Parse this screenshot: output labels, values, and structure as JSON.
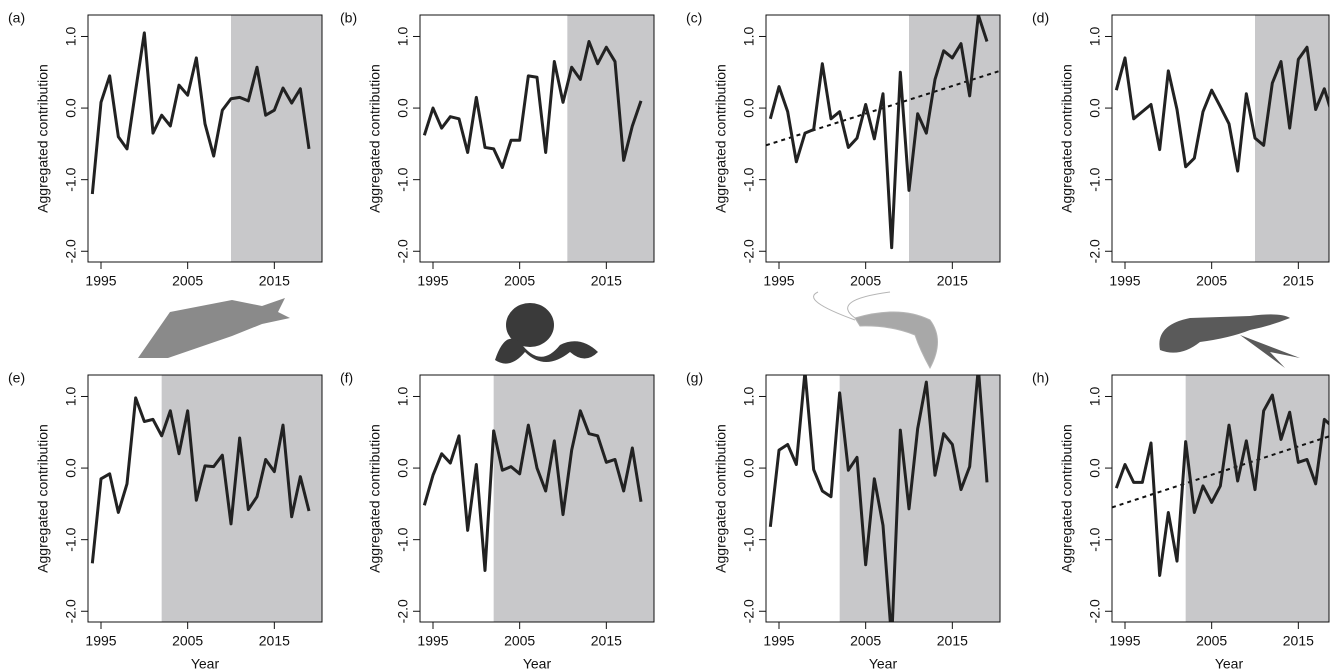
{
  "chart_data": [
    {
      "type": "line",
      "panel_label": "(a)",
      "ylabel": "Aggregated contribution",
      "color": "#222222",
      "shade_color": "#c8c8ca",
      "shaded_from": 2010,
      "x": [
        1994,
        1995,
        1996,
        1997,
        1998,
        1999,
        2000,
        2001,
        2002,
        2003,
        2004,
        2005,
        2006,
        2007,
        2008,
        2009,
        2010,
        2011,
        2012,
        2013,
        2014,
        2015,
        2016,
        2017,
        2018,
        2019
      ],
      "values": [
        -1.2,
        0.08,
        0.45,
        -0.4,
        -0.57,
        0.25,
        1.05,
        -0.35,
        -0.1,
        -0.25,
        0.32,
        0.18,
        0.7,
        -0.22,
        -0.67,
        -0.03,
        0.13,
        0.15,
        0.1,
        0.57,
        -0.1,
        -0.03,
        0.28,
        0.07,
        0.27,
        -0.57
      ],
      "xlim": [
        1993.5,
        2020.5
      ],
      "xticks": [
        1995,
        2005,
        2015
      ],
      "ylim": [
        -2.15,
        1.3
      ],
      "yticks": [
        {
          "value": -2,
          "label": "-2.0"
        },
        {
          "value": -1,
          "label": "-1.0"
        },
        {
          "value": 0,
          "label": "0.0"
        },
        {
          "value": 1,
          "label": "1.0"
        }
      ]
    },
    {
      "type": "line",
      "panel_label": "(b)",
      "ylabel": "Aggregated contribution",
      "color": "#222222",
      "shade_color": "#c8c8ca",
      "shaded_from": 2010.5,
      "x": [
        1994,
        1995,
        1996,
        1997,
        1998,
        1999,
        2000,
        2001,
        2002,
        2003,
        2004,
        2005,
        2006,
        2007,
        2008,
        2009,
        2010,
        2011,
        2012,
        2013,
        2014,
        2015,
        2016,
        2017,
        2018,
        2019
      ],
      "values": [
        -0.38,
        0.0,
        -0.28,
        -0.12,
        -0.15,
        -0.62,
        0.15,
        -0.55,
        -0.57,
        -0.83,
        -0.45,
        -0.45,
        0.45,
        0.43,
        -0.62,
        0.65,
        0.08,
        0.57,
        0.4,
        0.93,
        0.62,
        0.85,
        0.65,
        -0.73,
        -0.25,
        0.1
      ],
      "xlim": [
        1993.5,
        2020.5
      ],
      "xticks": [
        1995,
        2005,
        2015
      ],
      "ylim": [
        -2.15,
        1.3
      ],
      "yticks": [
        {
          "value": -2,
          "label": "-2.0"
        },
        {
          "value": -1,
          "label": "-1.0"
        },
        {
          "value": 0,
          "label": "0.0"
        },
        {
          "value": 1,
          "label": "1.0"
        }
      ]
    },
    {
      "type": "line",
      "panel_label": "(c)",
      "ylabel": "Aggregated contribution",
      "color": "#222222",
      "shade_color": "#c8c8ca",
      "shaded_from": 2010,
      "x": [
        1994,
        1995,
        1996,
        1997,
        1998,
        1999,
        2000,
        2001,
        2002,
        2003,
        2004,
        2005,
        2006,
        2007,
        2008,
        2009,
        2010,
        2011,
        2012,
        2013,
        2014,
        2015,
        2016,
        2017,
        2018,
        2019
      ],
      "values": [
        -0.15,
        0.3,
        -0.05,
        -0.75,
        -0.35,
        -0.3,
        0.62,
        -0.15,
        -0.05,
        -0.55,
        -0.42,
        0.05,
        -0.43,
        0.2,
        -1.95,
        0.5,
        -1.15,
        -0.08,
        -0.35,
        0.4,
        0.8,
        0.7,
        0.9,
        0.17,
        1.3,
        0.93
      ],
      "trend": {
        "x": [
          1993.5,
          2020.5
        ],
        "values": [
          -0.52,
          0.52
        ]
      },
      "xlim": [
        1993.5,
        2020.5
      ],
      "xticks": [
        1995,
        2005,
        2015
      ],
      "ylim": [
        -2.15,
        1.3
      ],
      "yticks": [
        {
          "value": -2,
          "label": "-2.0"
        },
        {
          "value": -1,
          "label": "-1.0"
        },
        {
          "value": 0,
          "label": "0.0"
        },
        {
          "value": 1,
          "label": "1.0"
        }
      ]
    },
    {
      "type": "line",
      "panel_label": "(d)",
      "ylabel": "Aggregated contribution",
      "color": "#222222",
      "shade_color": "#c8c8ca",
      "shaded_from": 2010,
      "x": [
        1994,
        1995,
        1996,
        1997,
        1998,
        1999,
        2000,
        2001,
        2002,
        2003,
        2004,
        2005,
        2006,
        2007,
        2008,
        2009,
        2010,
        2011,
        2012,
        2013,
        2014,
        2015,
        2016,
        2017,
        2018,
        2019
      ],
      "values": [
        0.25,
        0.7,
        -0.15,
        -0.05,
        0.05,
        -0.58,
        0.52,
        -0.02,
        -0.82,
        -0.7,
        -0.05,
        0.25,
        0.02,
        -0.22,
        -0.88,
        0.2,
        -0.42,
        -0.52,
        0.35,
        0.65,
        -0.28,
        0.68,
        0.85,
        -0.02,
        0.27,
        -0.13
      ],
      "xlim": [
        1993.5,
        2020.5
      ],
      "xticks": [
        1995,
        2005,
        2015
      ],
      "ylim": [
        -2.15,
        1.3
      ],
      "yticks": [
        {
          "value": -2,
          "label": "-2.0"
        },
        {
          "value": -1,
          "label": "-1.0"
        },
        {
          "value": 0,
          "label": "0.0"
        },
        {
          "value": 1,
          "label": "1.0"
        }
      ]
    },
    {
      "type": "line",
      "panel_label": "(e)",
      "ylabel": "Aggregated contribution",
      "xlabel": "Year",
      "color": "#222222",
      "shade_color": "#c8c8ca",
      "shaded_from": 2002,
      "x": [
        1994,
        1995,
        1996,
        1997,
        1998,
        1999,
        2000,
        2001,
        2002,
        2003,
        2004,
        2005,
        2006,
        2007,
        2008,
        2009,
        2010,
        2011,
        2012,
        2013,
        2014,
        2015,
        2016,
        2017,
        2018,
        2019
      ],
      "values": [
        -1.33,
        -0.15,
        -0.08,
        -0.62,
        -0.22,
        0.98,
        0.65,
        0.68,
        0.45,
        0.8,
        0.2,
        0.8,
        -0.45,
        0.03,
        0.02,
        0.18,
        -0.78,
        0.42,
        -0.58,
        -0.4,
        0.12,
        -0.05,
        0.6,
        -0.68,
        -0.12,
        -0.6
      ],
      "xlim": [
        1993.5,
        2020.5
      ],
      "xticks": [
        1995,
        2005,
        2015
      ],
      "ylim": [
        -2.15,
        1.3
      ],
      "yticks": [
        {
          "value": -2,
          "label": "-2.0"
        },
        {
          "value": -1,
          "label": "-1.0"
        },
        {
          "value": 0,
          "label": "0.0"
        },
        {
          "value": 1,
          "label": "1.0"
        }
      ]
    },
    {
      "type": "line",
      "panel_label": "(f)",
      "ylabel": "Aggregated contribution",
      "xlabel": "Year",
      "color": "#222222",
      "shade_color": "#c8c8ca",
      "shaded_from": 2002,
      "x": [
        1994,
        1995,
        1996,
        1997,
        1998,
        1999,
        2000,
        2001,
        2002,
        2003,
        2004,
        2005,
        2006,
        2007,
        2008,
        2009,
        2010,
        2011,
        2012,
        2013,
        2014,
        2015,
        2016,
        2017,
        2018,
        2019
      ],
      "values": [
        -0.52,
        -0.1,
        0.2,
        0.07,
        0.45,
        -0.87,
        0.05,
        -1.43,
        0.52,
        -0.03,
        0.02,
        -0.08,
        0.6,
        0.0,
        -0.32,
        0.38,
        -0.65,
        0.25,
        0.8,
        0.48,
        0.45,
        0.08,
        0.12,
        -0.32,
        0.28,
        -0.47
      ],
      "xlim": [
        1993.5,
        2020.5
      ],
      "xticks": [
        1995,
        2005,
        2015
      ],
      "ylim": [
        -2.15,
        1.3
      ],
      "yticks": [
        {
          "value": -2,
          "label": "-2.0"
        },
        {
          "value": -1,
          "label": "-1.0"
        },
        {
          "value": 0,
          "label": "0.0"
        },
        {
          "value": 1,
          "label": "1.0"
        }
      ]
    },
    {
      "type": "line",
      "panel_label": "(g)",
      "ylabel": "Aggregated contribution",
      "xlabel": "Year",
      "color": "#222222",
      "shade_color": "#c8c8ca",
      "shaded_from": 2002,
      "x": [
        1994,
        1995,
        1996,
        1997,
        1998,
        1999,
        2000,
        2001,
        2002,
        2003,
        2004,
        2005,
        2006,
        2007,
        2008,
        2009,
        2010,
        2011,
        2012,
        2013,
        2014,
        2015,
        2016,
        2017,
        2018,
        2019
      ],
      "values": [
        -0.82,
        0.25,
        0.33,
        0.05,
        1.35,
        -0.02,
        -0.32,
        -0.4,
        1.05,
        -0.03,
        0.15,
        -1.35,
        -0.15,
        -0.8,
        -2.4,
        0.53,
        -0.57,
        0.55,
        1.2,
        -0.1,
        0.48,
        0.33,
        -0.3,
        0.02,
        1.4,
        -0.2
      ],
      "xlim": [
        1993.5,
        2020.5
      ],
      "xticks": [
        1995,
        2005,
        2015
      ],
      "ylim": [
        -2.15,
        1.3
      ],
      "yticks": [
        {
          "value": -2,
          "label": "-2.0"
        },
        {
          "value": -1,
          "label": "-1.0"
        },
        {
          "value": 0,
          "label": "0.0"
        },
        {
          "value": 1,
          "label": "1.0"
        }
      ]
    },
    {
      "type": "line",
      "panel_label": "(h)",
      "ylabel": "Aggregated contribution",
      "xlabel": "Year",
      "color": "#222222",
      "shade_color": "#c8c8ca",
      "shaded_from": 2002,
      "x": [
        1994,
        1995,
        1996,
        1997,
        1998,
        1999,
        2000,
        2001,
        2002,
        2003,
        2004,
        2005,
        2006,
        2007,
        2008,
        2009,
        2010,
        2011,
        2012,
        2013,
        2014,
        2015,
        2016,
        2017,
        2018,
        2019
      ],
      "values": [
        -0.28,
        0.05,
        -0.2,
        -0.2,
        0.35,
        -1.5,
        -0.62,
        -1.3,
        0.37,
        -0.62,
        -0.25,
        -0.48,
        -0.25,
        0.6,
        -0.18,
        0.38,
        -0.3,
        0.8,
        1.02,
        0.4,
        0.78,
        0.08,
        0.12,
        -0.22,
        0.68,
        0.57
      ],
      "trend": {
        "x": [
          1993.5,
          2020.5
        ],
        "values": [
          -0.55,
          0.52
        ]
      },
      "xlim": [
        1993.5,
        2020.5
      ],
      "xticks": [
        1995,
        2005,
        2015
      ],
      "ylim": [
        -2.15,
        1.3
      ],
      "yticks": [
        {
          "value": -2,
          "label": "-2.0"
        },
        {
          "value": -1,
          "label": "-1.0"
        },
        {
          "value": 0,
          "label": "0.0"
        },
        {
          "value": 1,
          "label": "1.0"
        }
      ]
    }
  ]
}
